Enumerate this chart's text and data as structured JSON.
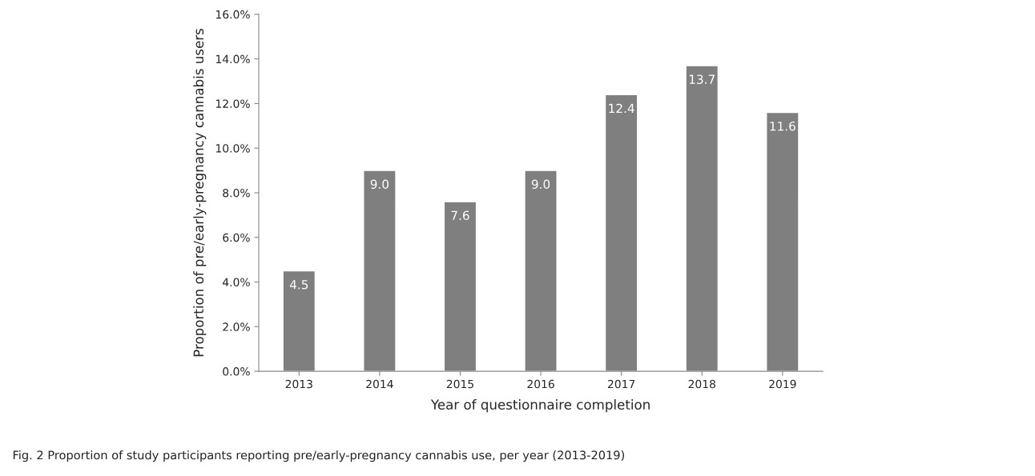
{
  "chart_data": {
    "type": "bar",
    "categories": [
      "2013",
      "2014",
      "2015",
      "2016",
      "2017",
      "2018",
      "2019"
    ],
    "values": [
      4.5,
      9.0,
      7.6,
      9.0,
      12.4,
      13.7,
      11.6
    ],
    "value_labels": [
      "4.5",
      "9.0",
      "7.6",
      "9.0",
      "12.4",
      "13.7",
      "11.6"
    ],
    "color": "#7f7f7f",
    "xlabel": "Year of questionnaire completion",
    "ylabel": "Proportion of pre/early-pregnancy cannabis users",
    "ylim": [
      0,
      16
    ],
    "yticks": [
      {
        "value": 0,
        "label": "0.0%"
      },
      {
        "value": 2,
        "label": "2.0%"
      },
      {
        "value": 4,
        "label": "4.0%"
      },
      {
        "value": 6,
        "label": "6.0%"
      },
      {
        "value": 8,
        "label": "8.0%"
      },
      {
        "value": 10,
        "label": "10.0%"
      },
      {
        "value": 12,
        "label": "12.0%"
      },
      {
        "value": 14,
        "label": "14.0%"
      },
      {
        "value": 16,
        "label": "16.0%"
      }
    ],
    "grid": false,
    "annotations": [
      "Fig. 2 Proportion of study participants reporting pre/early-pregnancy cannabis use, per year (2013-2019)"
    ]
  }
}
